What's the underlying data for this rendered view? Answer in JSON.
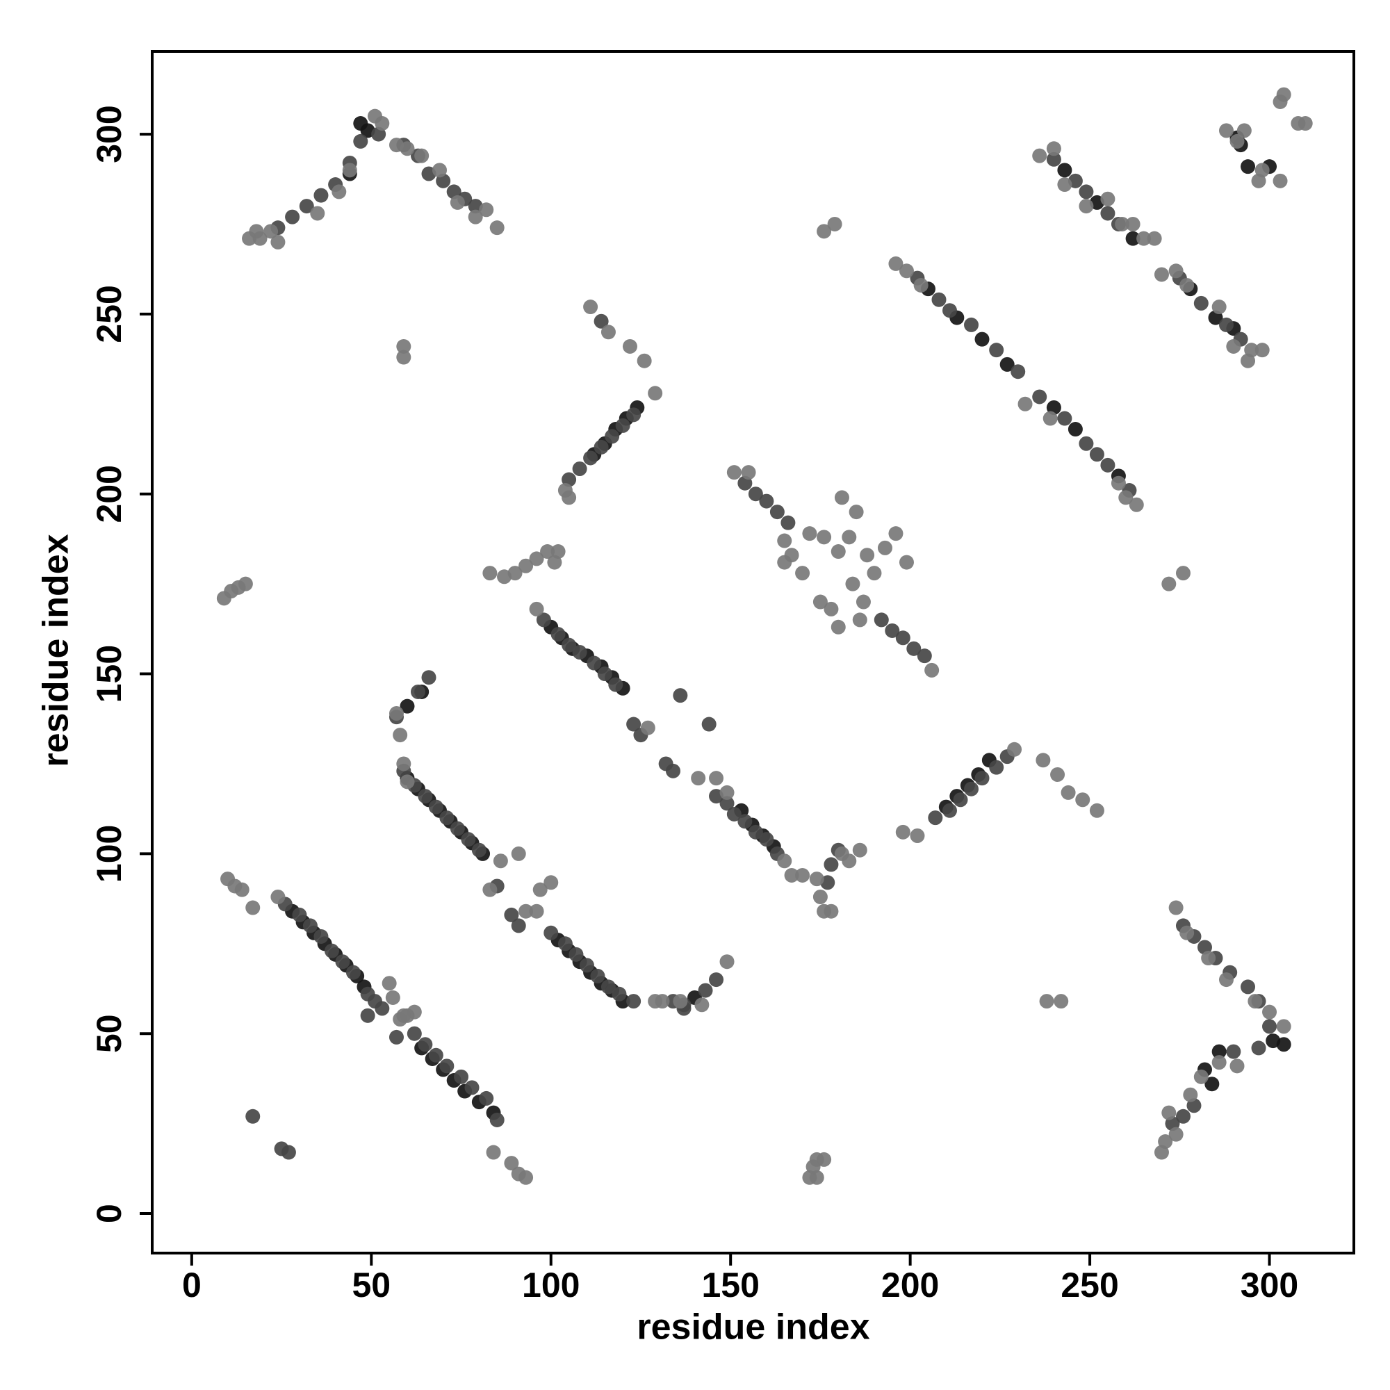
{
  "chart_data": {
    "type": "scatter",
    "xlabel": "residue index",
    "ylabel": "residue index",
    "xlim": [
      -11,
      323.5
    ],
    "ylim": [
      -11,
      323
    ],
    "xticks": [
      0,
      50,
      100,
      150,
      200,
      250,
      300
    ],
    "yticks": [
      0,
      50,
      100,
      150,
      200,
      250,
      300
    ],
    "grid": false,
    "series": [
      {
        "color": "#151515",
        "x": [
          28,
          31,
          34,
          37,
          40,
          43,
          46,
          48,
          64,
          67,
          70,
          73,
          76,
          80,
          84,
          60,
          63,
          66,
          69,
          72,
          75,
          78,
          81,
          102,
          105,
          108,
          111,
          114,
          117,
          120,
          100,
          103,
          106,
          110,
          114,
          117,
          120,
          153,
          156,
          159,
          162,
          140,
          112,
          115,
          118,
          121,
          124,
          210,
          213,
          216,
          219,
          222,
          205,
          213,
          220,
          227,
          240,
          246,
          258,
          243,
          252,
          262,
          278,
          285,
          290,
          47,
          49,
          44,
          291,
          292,
          294,
          300,
          301,
          304,
          286,
          282,
          284,
          60,
          64
        ],
        "values": [
          84,
          81,
          78,
          75,
          72,
          69,
          66,
          63,
          46,
          43,
          40,
          37,
          34,
          31,
          28,
          121,
          118,
          115,
          112,
          109,
          106,
          103,
          100,
          76,
          73,
          70,
          67,
          64,
          62,
          59,
          163,
          160,
          157,
          155,
          152,
          149,
          146,
          112,
          108,
          105,
          102,
          60,
          211,
          214,
          218,
          221,
          224,
          113,
          116,
          119,
          122,
          126,
          257,
          249,
          243,
          236,
          224,
          218,
          205,
          290,
          281,
          271,
          257,
          249,
          246,
          303,
          301,
          289,
          299,
          297,
          291,
          291,
          48,
          47,
          45,
          40,
          36,
          141,
          145
        ]
      },
      {
        "color": "#474747",
        "x": [
          26,
          30,
          33,
          36,
          39,
          42,
          45,
          49,
          51,
          53,
          49,
          57,
          62,
          65,
          68,
          71,
          75,
          78,
          82,
          85,
          25,
          27,
          17,
          59,
          62,
          65,
          68,
          71,
          74,
          77,
          80,
          85,
          89,
          91,
          100,
          104,
          107,
          110,
          113,
          116,
          119,
          123,
          134,
          137,
          143,
          146,
          98,
          102,
          105,
          108,
          112,
          115,
          118,
          123,
          125,
          132,
          134,
          146,
          149,
          151,
          154,
          157,
          160,
          163,
          136,
          144,
          57,
          63,
          66,
          105,
          108,
          111,
          114,
          117,
          120,
          123,
          154,
          157,
          160,
          163,
          166,
          192,
          195,
          198,
          201,
          204,
          207,
          211,
          214,
          217,
          220,
          224,
          227,
          202,
          208,
          211,
          217,
          224,
          230,
          236,
          243,
          249,
          252,
          255,
          261,
          240,
          246,
          249,
          255,
          258,
          275,
          281,
          288,
          292,
          114,
          24,
          28,
          32,
          36,
          40,
          44,
          47,
          52,
          59,
          63,
          66,
          70,
          73,
          76,
          79,
          276,
          279,
          282,
          285,
          289,
          294,
          297,
          300,
          297,
          279,
          276,
          273,
          290,
          137,
          180,
          178,
          177
        ],
        "values": [
          86,
          83,
          80,
          77,
          73,
          70,
          67,
          61,
          59,
          57,
          55,
          49,
          50,
          47,
          44,
          41,
          38,
          35,
          32,
          26,
          18,
          17,
          27,
          123,
          119,
          116,
          113,
          110,
          107,
          104,
          101,
          91,
          83,
          80,
          78,
          75,
          72,
          69,
          66,
          63,
          61,
          59,
          59,
          58,
          62,
          65,
          165,
          161,
          158,
          156,
          153,
          150,
          147,
          136,
          133,
          125,
          123,
          116,
          114,
          111,
          109,
          106,
          104,
          100,
          144,
          136,
          138,
          145,
          149,
          204,
          207,
          210,
          213,
          216,
          219,
          222,
          203,
          200,
          198,
          195,
          192,
          165,
          162,
          160,
          157,
          155,
          110,
          112,
          115,
          118,
          121,
          124,
          127,
          260,
          254,
          251,
          247,
          240,
          234,
          227,
          221,
          214,
          211,
          208,
          201,
          293,
          287,
          284,
          278,
          275,
          260,
          253,
          247,
          243,
          248,
          274,
          277,
          280,
          283,
          286,
          292,
          298,
          300,
          297,
          294,
          289,
          287,
          284,
          282,
          280,
          80,
          77,
          74,
          71,
          67,
          63,
          59,
          52,
          46,
          30,
          27,
          25,
          45,
          57,
          101,
          97,
          92
        ]
      },
      {
        "color": "#787878",
        "x": [
          10,
          12,
          14,
          17,
          24,
          55,
          56,
          60,
          62,
          84,
          89,
          91,
          93,
          86,
          83,
          93,
          91,
          97,
          100,
          96,
          58,
          57,
          59,
          60,
          127,
          129,
          131,
          136,
          142,
          149,
          141,
          146,
          149,
          165,
          167,
          170,
          174,
          175,
          176,
          178,
          181,
          183,
          186,
          9,
          11,
          13,
          15,
          83,
          87,
          90,
          93,
          96,
          99,
          101,
          102,
          96,
          104,
          105,
          111,
          116,
          122,
          126,
          129,
          151,
          155,
          165,
          167,
          170,
          165,
          175,
          178,
          180,
          180,
          181,
          185,
          183,
          188,
          190,
          187,
          186,
          193,
          196,
          199,
          206,
          184,
          172,
          176,
          198,
          202,
          229,
          237,
          241,
          244,
          248,
          252,
          238,
          242,
          272,
          276,
          196,
          199,
          203,
          232,
          239,
          258,
          263,
          260,
          236,
          240,
          243,
          249,
          255,
          259,
          262,
          265,
          268,
          270,
          274,
          277,
          286,
          295,
          298,
          294,
          290,
          16,
          19,
          24,
          18,
          22,
          35,
          41,
          44,
          51,
          53,
          57,
          60,
          64,
          69,
          74,
          79,
          82,
          85,
          59,
          59,
          176,
          179,
          288,
          293,
          304,
          303,
          308,
          310,
          298,
          297,
          303,
          291,
          270,
          271,
          274,
          272,
          278,
          281,
          274,
          277,
          283,
          288,
          296,
          300,
          304,
          286,
          291,
          174,
          172,
          173,
          174,
          176,
          58,
          59
        ],
        "values": [
          93,
          91,
          90,
          85,
          88,
          64,
          60,
          55,
          56,
          17,
          14,
          11,
          10,
          98,
          90,
          84,
          100,
          90,
          92,
          84,
          133,
          139,
          125,
          120,
          135,
          59,
          59,
          59,
          58,
          70,
          121,
          121,
          117,
          98,
          94,
          94,
          93,
          88,
          84,
          84,
          100,
          98,
          101,
          171,
          173,
          174,
          175,
          178,
          177,
          178,
          180,
          182,
          184,
          181,
          184,
          168,
          201,
          199,
          252,
          245,
          241,
          237,
          228,
          206,
          206,
          187,
          183,
          178,
          181,
          170,
          168,
          163,
          184,
          199,
          195,
          188,
          183,
          178,
          170,
          165,
          185,
          189,
          181,
          151,
          175,
          189,
          188,
          106,
          105,
          129,
          126,
          122,
          117,
          115,
          112,
          59,
          59,
          175,
          178,
          264,
          262,
          258,
          225,
          221,
          203,
          197,
          199,
          294,
          296,
          286,
          280,
          282,
          275,
          275,
          271,
          271,
          261,
          262,
          258,
          252,
          240,
          240,
          237,
          241,
          271,
          271,
          270,
          273,
          273,
          278,
          284,
          290,
          305,
          303,
          297,
          296,
          294,
          290,
          281,
          277,
          279,
          274,
          241,
          238,
          273,
          275,
          301,
          301,
          311,
          309,
          303,
          303,
          290,
          287,
          287,
          298,
          17,
          20,
          22,
          28,
          33,
          38,
          85,
          78,
          71,
          65,
          59,
          56,
          52,
          42,
          41,
          10,
          10,
          13,
          15,
          15,
          54,
          55
        ]
      }
    ]
  }
}
